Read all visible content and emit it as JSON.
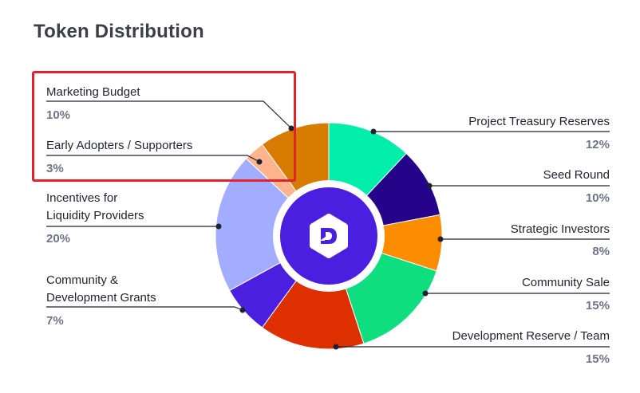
{
  "title": "Token Distribution",
  "colors": {
    "highlight": "#e0242c",
    "logo": "#4b1fe0"
  },
  "logo_icon": "d-logo-icon",
  "chart_data": {
    "type": "pie",
    "style": "donut",
    "title": "Token Distribution",
    "slices": [
      {
        "label": "Project Treasury Reserves",
        "value": 12,
        "pct": "12%",
        "color": "#00eeaa"
      },
      {
        "label": "Seed Round",
        "value": 10,
        "pct": "10%",
        "color": "#26048a"
      },
      {
        "label": "Strategic Investors",
        "value": 8,
        "pct": "8%",
        "color": "#fb8c00"
      },
      {
        "label": "Community Sale",
        "value": 15,
        "pct": "15%",
        "color": "#0ede7e"
      },
      {
        "label": "Development Reserve / Team",
        "value": 15,
        "pct": "15%",
        "color": "#dd2f00"
      },
      {
        "label": "Community & Development Grants",
        "value": 7,
        "pct": "7%",
        "color": "#4b1fe0"
      },
      {
        "label": "Incentives for Liquidity Providers",
        "value": 20,
        "pct": "20%",
        "color": "#a3adff"
      },
      {
        "label": "Early Adopters / Supporters",
        "value": 3,
        "pct": "3%",
        "color": "#ffb48d"
      },
      {
        "label": "Marketing Budget",
        "value": 10,
        "pct": "10%",
        "color": "#d77c00"
      }
    ]
  },
  "labels": {
    "marketing": {
      "name": "Marketing Budget",
      "pct": "10%"
    },
    "early": {
      "name": "Early Adopters / Supporters",
      "pct": "3%"
    },
    "incentives": {
      "line1": "Incentives for",
      "line2": "Liquidity Providers",
      "pct": "20%"
    },
    "grants": {
      "line1": "Community &",
      "line2": "Development Grants",
      "pct": "7%"
    },
    "treasury": {
      "name": "Project Treasury Reserves",
      "pct": "12%"
    },
    "seed": {
      "name": "Seed Round",
      "pct": "10%"
    },
    "strategic": {
      "name": "Strategic Investors",
      "pct": "8%"
    },
    "community_sale": {
      "name": "Community Sale",
      "pct": "15%"
    },
    "dev_reserve": {
      "name": "Development Reserve / Team",
      "pct": "15%"
    }
  }
}
